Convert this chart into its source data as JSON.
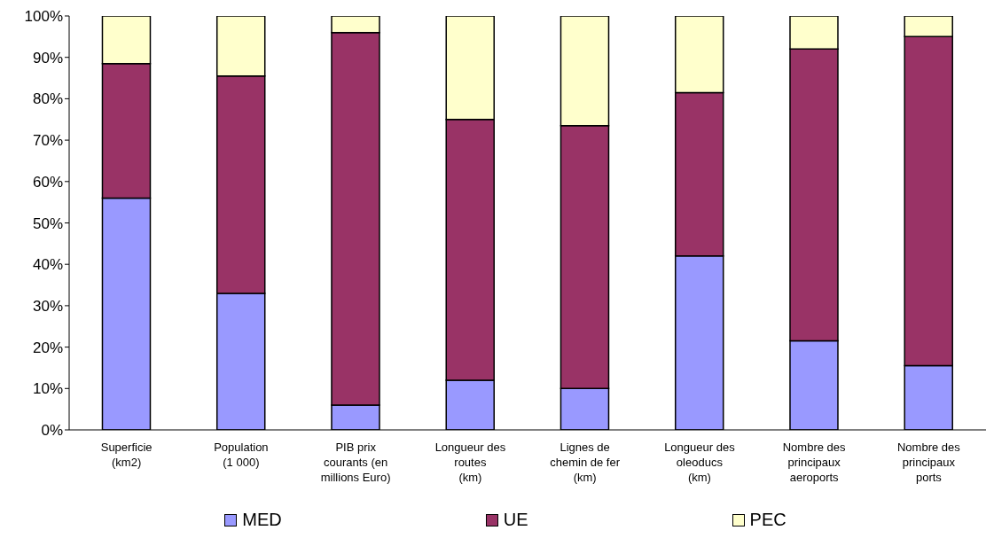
{
  "chart_data": {
    "type": "bar",
    "stacked": true,
    "categories": [
      "Superficie\n(km2)",
      "Population\n(1 000)",
      "PIB prix\ncourants (en\nmillions Euro)",
      "Longueur des\nroutes\n(km)",
      "Lignes de\nchemin de fer\n(km)",
      "Longueur des\noleoducs\n(km)",
      "Nombre des\nprincipaux\naeroports",
      "Nombre des\nprincipaux\nports"
    ],
    "series": [
      {
        "name": "MED",
        "color": "#9999ff",
        "values": [
          56,
          33,
          6,
          12,
          10,
          42,
          21.5,
          15.5
        ]
      },
      {
        "name": "UE",
        "color": "#993366",
        "values": [
          32.5,
          52.5,
          90,
          63,
          63.5,
          39.5,
          70.5,
          79.5
        ]
      },
      {
        "name": "PEC",
        "color": "#ffffcc",
        "values": [
          11.5,
          14.5,
          4,
          25,
          26.5,
          18.5,
          8,
          5
        ]
      }
    ],
    "ylim": [
      0,
      100
    ],
    "yticks": [
      {
        "value": 0,
        "label": "0%"
      },
      {
        "value": 10,
        "label": "10%"
      },
      {
        "value": 20,
        "label": "20%"
      },
      {
        "value": 30,
        "label": "30%"
      },
      {
        "value": 40,
        "label": "40%"
      },
      {
        "value": 50,
        "label": "50%"
      },
      {
        "value": 60,
        "label": "60%"
      },
      {
        "value": 70,
        "label": "70%"
      },
      {
        "value": 80,
        "label": "80%"
      },
      {
        "value": 90,
        "label": "90%"
      },
      {
        "value": 100,
        "label": "100%"
      }
    ],
    "grid": false,
    "legend": "bottom"
  }
}
